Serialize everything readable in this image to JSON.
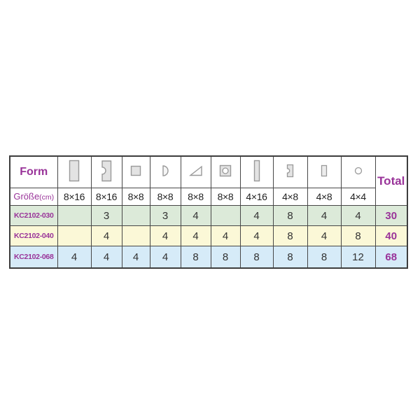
{
  "table": {
    "form_label": "Form",
    "size_label": "Größe",
    "size_unit": "(cm)",
    "total_label": "Total",
    "columns": [
      {
        "shape": "rectangle-tall-icon",
        "size": "8×16"
      },
      {
        "shape": "rectangle-notch-icon",
        "size": "8×16"
      },
      {
        "shape": "square-icon",
        "size": "8×8"
      },
      {
        "shape": "half-circle-icon",
        "size": "8×8"
      },
      {
        "shape": "triangle-icon",
        "size": "8×8"
      },
      {
        "shape": "square-hole-icon",
        "size": "8×8"
      },
      {
        "shape": "rectangle-thin-icon",
        "size": "4×16"
      },
      {
        "shape": "rectangle-notch-small-icon",
        "size": "4×8"
      },
      {
        "shape": "rectangle-small-icon",
        "size": "4×8"
      },
      {
        "shape": "circle-icon",
        "size": "4×4"
      }
    ],
    "rows": [
      {
        "code": "KC2102-030",
        "values": [
          "",
          "3",
          "",
          "3",
          "4",
          "",
          "4",
          "8",
          "4",
          "4"
        ],
        "total": "30",
        "bg": "#dcead9"
      },
      {
        "code": "KC2102-040",
        "values": [
          "",
          "4",
          "",
          "4",
          "4",
          "4",
          "4",
          "8",
          "4",
          "8"
        ],
        "total": "40",
        "bg": "#fbf8d7"
      },
      {
        "code": "KC2102-068",
        "values": [
          "4",
          "4",
          "4",
          "4",
          "8",
          "8",
          "8",
          "8",
          "8",
          "12"
        ],
        "total": "68",
        "bg": "#d6ebf8"
      }
    ],
    "colors": {
      "accent_purple": "#993399",
      "row_green": "#dcead9",
      "row_yellow": "#fbf8d7",
      "row_blue": "#d6ebf8",
      "border": "#474747",
      "shape_fill": "#e3e3e3",
      "shape_stroke": "#999999"
    }
  }
}
